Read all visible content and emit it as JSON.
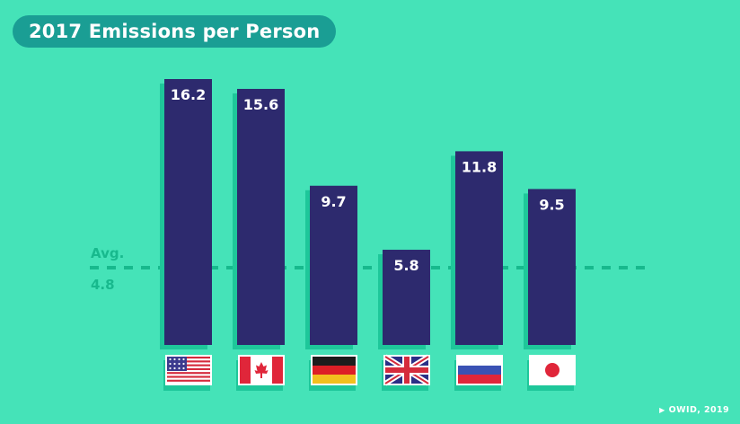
{
  "chart_data": {
    "type": "bar",
    "title": "2017 Emissions per Person",
    "categories": [
      "United States",
      "Canada",
      "Germany",
      "United Kingdom",
      "Russia",
      "Japan"
    ],
    "values": [
      16.2,
      15.6,
      9.7,
      5.8,
      11.8,
      9.5
    ],
    "value_labels": [
      "16.2",
      "15.6",
      "9.7",
      "5.8",
      "11.8",
      "9.5"
    ],
    "average": {
      "label": "Avg.",
      "value_label": "4.8",
      "value": 4.8
    },
    "ylim": [
      0,
      16.2
    ],
    "grid": false,
    "legend": "none",
    "flags": [
      "usa-flag-icon",
      "canada-flag-icon",
      "germany-flag-icon",
      "uk-flag-icon",
      "russia-flag-icon",
      "japan-flag-icon"
    ]
  },
  "colors": {
    "background": "#45e3b8",
    "bar": "#2d2a6e",
    "bar_shadow": "#1ec79a",
    "avg_line": "#17b98d",
    "title_pill": "#1a9e94",
    "text": "#ffffff"
  },
  "credit": {
    "icon": "play-icon",
    "text": "OWID, 2019"
  }
}
